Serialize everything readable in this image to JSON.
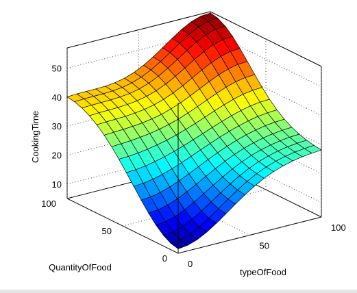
{
  "chart_data": {
    "type": "surface",
    "title": "",
    "xlabel": "typeOfFood",
    "ylabel": "QuantityOfFood",
    "zlabel": "CookingTime",
    "xlim": [
      0,
      100
    ],
    "ylim": [
      0,
      100
    ],
    "zlim": [
      5,
      57
    ],
    "x_ticks": [
      0,
      50,
      100
    ],
    "y_ticks": [
      0,
      50,
      100
    ],
    "z_ticks": [
      10,
      20,
      30,
      40,
      50
    ],
    "grid": true,
    "colormap": "jet",
    "colors": {
      "figure_background": "#e5e5e5",
      "axes_background": "#ffffff",
      "mesh_edge": "#000000"
    },
    "grid_resolution": 15,
    "surface_model": {
      "description": "sampled values of the surface, z = base + sum of gaussian bumps in data units",
      "base": 28,
      "bumps": [
        {
          "x": 0,
          "y": 0,
          "amp": -22,
          "sx": 35,
          "sy": 35
        },
        {
          "x": 100,
          "y": 100,
          "amp": 28,
          "sx": 35,
          "sy": 35
        },
        {
          "x": 0,
          "y": 100,
          "amp": 12,
          "sx": 40,
          "sy": 40
        }
      ],
      "sample_points": [
        {
          "x": 0,
          "y": 0,
          "z": 6
        },
        {
          "x": 0,
          "y": 50,
          "z": 25
        },
        {
          "x": 50,
          "y": 0,
          "z": 25
        },
        {
          "x": 50,
          "y": 50,
          "z": 27
        },
        {
          "x": 100,
          "y": 0,
          "z": 25
        },
        {
          "x": 0,
          "y": 100,
          "z": 38
        },
        {
          "x": 100,
          "y": 50,
          "z": 25
        },
        {
          "x": 50,
          "y": 100,
          "z": 33
        },
        {
          "x": 100,
          "y": 100,
          "z": 56
        }
      ]
    }
  }
}
